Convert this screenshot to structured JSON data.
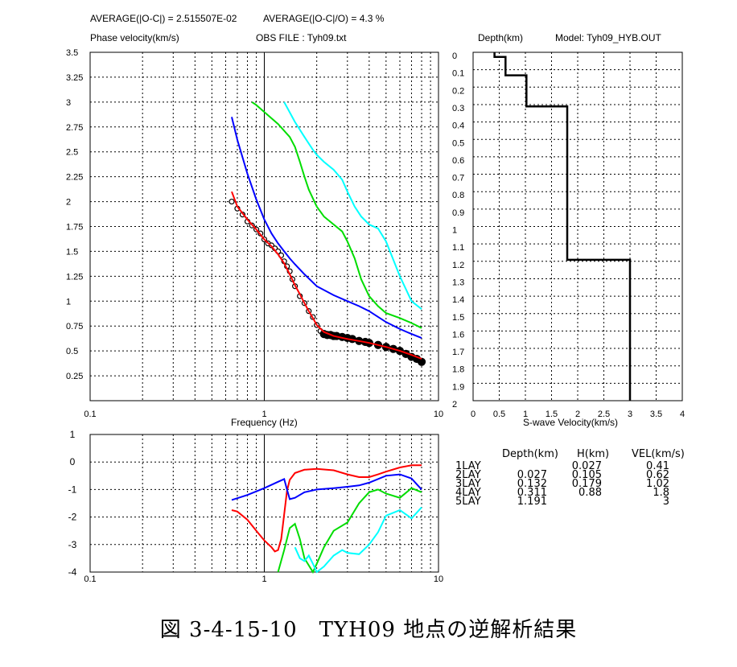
{
  "header": {
    "avg_abs": "AVERAGE(|O-C|) = 2.515507E-02",
    "avg_rel": "AVERAGE(|O-C|/O) = 4.3 %",
    "obs_file": "OBS FILE : Tyh09.txt",
    "depth_label": "Depth(km)",
    "model_label": "Model: Tyh09_HYB.OUT"
  },
  "caption": "図 3-4-15-10　TYH09 地点の逆解析結果",
  "chart_data": [
    {
      "type": "line",
      "ylabel": "Phase velocity(km/s)",
      "xlabel": "Frequency (Hz)",
      "xscale": "log",
      "xlim": [
        0.1,
        10
      ],
      "ylim": [
        0,
        3.5
      ],
      "x_tick_labels": [
        "0.1",
        "1",
        "10"
      ],
      "y_ticks": [
        0.25,
        0.5,
        0.75,
        1,
        1.25,
        1.5,
        1.75,
        2,
        2.25,
        2.5,
        2.75,
        3,
        3.25,
        3.5
      ],
      "y_tick_labels": [
        "0.25",
        "0.5",
        "0.75",
        "1",
        "1.25",
        "1.5",
        "1.75",
        "2",
        "2.25",
        "2.5",
        "2.75",
        "3",
        "3.25",
        "3.5"
      ],
      "grid": true,
      "observed": {
        "marker": "circle",
        "color": "#000000",
        "x": [
          0.65,
          0.7,
          0.75,
          0.8,
          0.85,
          0.9,
          0.95,
          1.0,
          1.05,
          1.1,
          1.15,
          1.2,
          1.25,
          1.3,
          1.35,
          1.4,
          1.45,
          1.5,
          1.6,
          1.7,
          1.8,
          1.9,
          2.0,
          2.1,
          2.2,
          2.3,
          2.4,
          2.5,
          2.6,
          2.8,
          3.0,
          3.2,
          3.5,
          3.8,
          4.0,
          4.5,
          5.0,
          5.5,
          6.0,
          6.5,
          7.0,
          7.5,
          8.0
        ],
        "y": [
          2.0,
          1.93,
          1.87,
          1.8,
          1.76,
          1.72,
          1.68,
          1.62,
          1.58,
          1.56,
          1.53,
          1.5,
          1.46,
          1.4,
          1.35,
          1.3,
          1.22,
          1.15,
          1.05,
          0.98,
          0.9,
          0.84,
          0.76,
          0.7,
          0.67,
          0.66,
          0.66,
          0.65,
          0.65,
          0.64,
          0.63,
          0.62,
          0.6,
          0.59,
          0.58,
          0.56,
          0.54,
          0.52,
          0.5,
          0.47,
          0.44,
          0.42,
          0.39
        ]
      },
      "series": [
        {
          "color": "#ff0000",
          "x": [
            0.65,
            0.7,
            0.8,
            0.9,
            1.0,
            1.1,
            1.2,
            1.3,
            1.4,
            1.5,
            1.6,
            1.7,
            1.8,
            1.9,
            2.0,
            2.2,
            2.5,
            3.0,
            3.5,
            4.0,
            5.0,
            6.0,
            7.0,
            8.0
          ],
          "y": [
            2.1,
            1.95,
            1.82,
            1.72,
            1.62,
            1.55,
            1.47,
            1.38,
            1.27,
            1.16,
            1.07,
            0.98,
            0.9,
            0.83,
            0.76,
            0.69,
            0.65,
            0.62,
            0.6,
            0.58,
            0.54,
            0.5,
            0.46,
            0.42
          ]
        },
        {
          "color": "#0000ff",
          "x": [
            0.65,
            0.7,
            0.8,
            0.9,
            1.0,
            1.1,
            1.2,
            1.3,
            1.4,
            1.5,
            1.7,
            2.0,
            2.5,
            3.0,
            3.5,
            4.0,
            5.0,
            6.0,
            7.0,
            8.0
          ],
          "y": [
            2.85,
            2.62,
            2.28,
            2.02,
            1.82,
            1.68,
            1.58,
            1.5,
            1.43,
            1.37,
            1.27,
            1.15,
            1.06,
            1.0,
            0.95,
            0.9,
            0.79,
            0.72,
            0.67,
            0.63
          ]
        },
        {
          "color": "#00dd00",
          "x": [
            0.85,
            0.9,
            1.0,
            1.2,
            1.4,
            1.5,
            1.6,
            1.7,
            1.8,
            2.0,
            2.2,
            2.5,
            2.8,
            3.0,
            3.3,
            3.6,
            4.0,
            4.5,
            5.0,
            6.0,
            7.0,
            8.0
          ],
          "y": [
            3.0,
            2.97,
            2.9,
            2.78,
            2.65,
            2.55,
            2.4,
            2.25,
            2.12,
            1.95,
            1.85,
            1.77,
            1.7,
            1.6,
            1.43,
            1.22,
            1.05,
            0.95,
            0.88,
            0.83,
            0.78,
            0.73
          ]
        },
        {
          "color": "#00ffff",
          "x": [
            1.3,
            1.5,
            1.7,
            1.9,
            2.0,
            2.2,
            2.5,
            2.8,
            3.0,
            3.3,
            3.6,
            4.0,
            4.5,
            5.0,
            6.0,
            7.0,
            8.0
          ],
          "y": [
            3.0,
            2.8,
            2.65,
            2.52,
            2.47,
            2.4,
            2.32,
            2.22,
            2.1,
            1.95,
            1.85,
            1.77,
            1.73,
            1.6,
            1.25,
            1.0,
            0.92
          ]
        }
      ]
    },
    {
      "type": "line",
      "xlabel": "S-wave Velocity(km/s)",
      "ylabel": "Depth(km)",
      "xlim": [
        0,
        4
      ],
      "ylim": [
        0,
        2
      ],
      "y_inverted": true,
      "x_ticks": [
        0,
        0.5,
        1,
        1.5,
        2,
        2.5,
        3,
        3.5,
        4
      ],
      "x_tick_labels": [
        "0",
        "0.5",
        "1",
        "1.5",
        "2",
        "2.5",
        "3",
        "3.5",
        "4"
      ],
      "y_ticks": [
        0,
        0.1,
        0.2,
        0.3,
        0.4,
        0.5,
        0.6,
        0.7,
        0.8,
        0.9,
        1,
        1.1,
        1.2,
        1.3,
        1.4,
        1.5,
        1.6,
        1.7,
        1.8,
        1.9,
        2
      ],
      "y_tick_labels": [
        "0",
        "0.1",
        "0.2",
        "0.3",
        "0.4",
        "0.5",
        "0.6",
        "0.7",
        "0.8",
        "0.9",
        "1",
        "1.1",
        "1.2",
        "1.3",
        "1.4",
        "1.5",
        "1.6",
        "1.7",
        "1.8",
        "1.9",
        "2"
      ],
      "grid": true,
      "profile": {
        "color": "#000000",
        "layers": [
          {
            "top": 0,
            "bottom": 0.027,
            "vs": 0.41
          },
          {
            "top": 0.027,
            "bottom": 0.132,
            "vs": 0.62
          },
          {
            "top": 0.132,
            "bottom": 0.311,
            "vs": 1.02
          },
          {
            "top": 0.311,
            "bottom": 1.191,
            "vs": 1.8
          },
          {
            "top": 1.191,
            "bottom": 2.0,
            "vs": 3
          }
        ]
      }
    },
    {
      "type": "line",
      "xscale": "log",
      "xlim": [
        0.1,
        10
      ],
      "ylim": [
        -4,
        1
      ],
      "x_tick_labels": [
        "0.1",
        "1",
        "10"
      ],
      "y_ticks": [
        -4,
        -3,
        -2,
        -1,
        0,
        1
      ],
      "y_tick_labels": [
        "-4",
        "-3",
        "-2",
        "-1",
        "0",
        "1"
      ],
      "grid": true,
      "series": [
        {
          "color": "#ff0000",
          "x": [
            0.65,
            0.7,
            0.8,
            0.9,
            1.0,
            1.1,
            1.15,
            1.2,
            1.25,
            1.3,
            1.35,
            1.4,
            1.5,
            1.7,
            2.0,
            2.5,
            3.0,
            3.5,
            4.0,
            4.5,
            5.0,
            6.0,
            7.0,
            8.0
          ],
          "y": [
            -1.75,
            -1.8,
            -2.1,
            -2.5,
            -2.85,
            -3.1,
            -3.25,
            -3.2,
            -2.8,
            -1.9,
            -1.05,
            -0.65,
            -0.4,
            -0.28,
            -0.25,
            -0.3,
            -0.45,
            -0.55,
            -0.55,
            -0.45,
            -0.35,
            -0.2,
            -0.12,
            -0.12
          ]
        },
        {
          "color": "#0000ff",
          "x": [
            0.65,
            0.8,
            1.0,
            1.2,
            1.3,
            1.35,
            1.4,
            1.5,
            1.7,
            2.0,
            2.5,
            3.0,
            3.5,
            4.0,
            5.0,
            6.0,
            7.0,
            8.0
          ],
          "y": [
            -1.38,
            -1.2,
            -0.95,
            -0.72,
            -0.62,
            -1.0,
            -1.35,
            -1.3,
            -1.1,
            -1.0,
            -0.95,
            -0.9,
            -0.85,
            -0.75,
            -0.5,
            -0.45,
            -0.6,
            -1.0
          ]
        },
        {
          "color": "#00dd00",
          "x": [
            1.2,
            1.3,
            1.4,
            1.5,
            1.6,
            1.7,
            1.9,
            2.0,
            2.2,
            2.5,
            3.0,
            3.5,
            4.0,
            4.5,
            5.0,
            6.0,
            7.0,
            8.0
          ],
          "y": [
            -4.0,
            -3.2,
            -2.4,
            -2.25,
            -2.8,
            -3.5,
            -4.0,
            -3.7,
            -3.1,
            -2.5,
            -2.2,
            -1.5,
            -1.1,
            -1.0,
            -1.15,
            -1.3,
            -0.95,
            -1.1
          ]
        },
        {
          "color": "#00ffff",
          "x": [
            1.5,
            1.6,
            1.7,
            1.8,
            1.9,
            2.0,
            2.2,
            2.5,
            2.8,
            3.0,
            3.5,
            4.0,
            4.5,
            5.0,
            6.0,
            7.0,
            8.0
          ],
          "y": [
            -3.1,
            -3.5,
            -3.6,
            -3.4,
            -3.7,
            -4.0,
            -3.8,
            -3.4,
            -3.2,
            -3.3,
            -3.35,
            -3.0,
            -2.55,
            -1.95,
            -1.75,
            -2.05,
            -1.65
          ]
        }
      ]
    }
  ],
  "layer_table": {
    "headers": [
      "Depth(km)",
      "H(km)",
      "VEL(km/s)"
    ],
    "rows": [
      {
        "name": "1LAY",
        "depth": "",
        "h": "0.027",
        "vel": "0.41"
      },
      {
        "name": "2LAY",
        "depth": "0.027",
        "h": "0.105",
        "vel": "0.62"
      },
      {
        "name": "3LAY",
        "depth": "0.132",
        "h": "0.179",
        "vel": "1.02"
      },
      {
        "name": "4LAY",
        "depth": "0.311",
        "h": "0.88",
        "vel": "1.8"
      },
      {
        "name": "5LAY",
        "depth": "1.191",
        "h": "",
        "vel": "3"
      }
    ]
  }
}
